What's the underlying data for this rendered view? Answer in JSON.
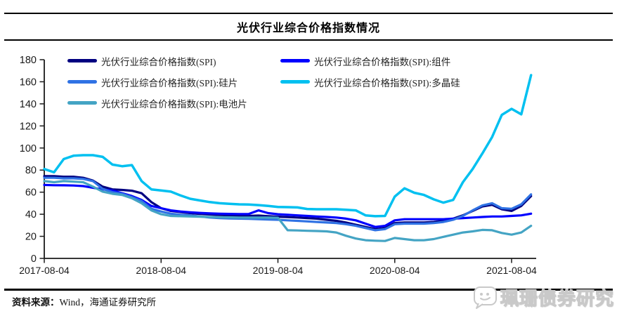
{
  "page": {
    "title": "光伏行业综合价格指数情况",
    "source_prefix": "资料来源：",
    "source_text": "Wind，海通证券研究所",
    "watermark": "珮珊债券研究"
  },
  "chart_data": {
    "type": "line",
    "title": "光伏行业综合价格指数情况",
    "xlabel": "",
    "ylabel": "",
    "ylim": [
      0,
      180
    ],
    "grid": false,
    "legend_position": "top",
    "x_unit": "months since 2017-08-04, one point per month through 2021-10",
    "y_ticks": [
      0,
      20,
      40,
      60,
      80,
      100,
      120,
      140,
      160,
      180
    ],
    "x_ticks": [
      {
        "label": "2017-08-04",
        "i": 0
      },
      {
        "label": "2018-08-04",
        "i": 12
      },
      {
        "label": "2019-08-04",
        "i": 24
      },
      {
        "label": "2020-08-04",
        "i": 36
      },
      {
        "label": "2021-08-04",
        "i": 48
      }
    ],
    "series": [
      {
        "key": "spi",
        "name": "光伏行业综合价格指数(SPI)",
        "color": "#010080",
        "width": 3.2,
        "values": [
          74.5,
          74.5,
          74,
          74,
          73,
          70.5,
          65,
          62.5,
          62,
          61.3,
          59,
          51,
          45.5,
          43,
          42,
          41,
          40.3,
          39.8,
          39.3,
          39,
          38.7,
          38.5,
          38.8,
          38.2,
          37.8,
          37.4,
          37,
          36.5,
          36,
          35,
          34,
          32.5,
          30.5,
          28.5,
          26.5,
          27.5,
          32,
          32.5,
          32.5,
          32.5,
          33,
          34,
          36,
          39,
          43,
          47,
          48.5,
          44.5,
          43,
          47.5,
          56.5
        ]
      },
      {
        "key": "module",
        "name": "光伏行业综合价格指数(SPI):组件",
        "color": "#0000FF",
        "width": 3.2,
        "values": [
          66.5,
          66.3,
          66.2,
          66,
          65.5,
          64,
          62.5,
          61.5,
          59,
          56.5,
          53,
          47.5,
          45.5,
          43.5,
          42.5,
          41.8,
          41.2,
          40.8,
          40.5,
          40.3,
          40.2,
          40.2,
          43.5,
          41,
          40,
          39.5,
          39,
          38.5,
          38,
          37.5,
          37,
          36,
          34.5,
          31.5,
          28.5,
          29.5,
          34.5,
          35.5,
          35.5,
          35.5,
          35.5,
          35.5,
          36,
          36.5,
          37,
          37.5,
          38,
          38,
          38.5,
          39,
          40.5
        ]
      },
      {
        "key": "wafer",
        "name": "光伏行业综合价格指数(SPI):硅片",
        "color": "#2F72E4",
        "width": 3.2,
        "values": [
          73,
          73,
          72.5,
          72.5,
          72,
          70,
          63,
          60,
          58.5,
          55.5,
          52,
          45,
          42.5,
          40.5,
          39.5,
          39,
          38,
          37,
          36.5,
          36.2,
          36,
          35.8,
          35.5,
          35.2,
          35,
          34.5,
          34,
          33.5,
          33,
          32.5,
          32,
          31,
          29.5,
          27.5,
          25.5,
          26.5,
          31,
          31.5,
          31.5,
          31.5,
          32,
          33,
          35,
          38.5,
          43.5,
          48,
          50,
          45.5,
          45,
          49,
          58
        ]
      },
      {
        "key": "polysilicon",
        "name": "光伏行业综合价格指数(SPI):多晶硅",
        "color": "#00C0F0",
        "width": 3.5,
        "values": [
          81,
          78,
          90,
          93,
          93.5,
          93.5,
          92,
          85,
          83.5,
          84.5,
          70,
          62.5,
          61.5,
          60.5,
          57,
          54,
          52.5,
          51,
          50,
          49.5,
          49,
          48.8,
          48.3,
          47.5,
          46.6,
          46.4,
          46.2,
          44.8,
          44.5,
          44.5,
          44.5,
          44,
          43.5,
          39,
          38.2,
          38.5,
          56,
          63.5,
          59.5,
          57.5,
          53.5,
          50.5,
          53,
          69,
          81,
          95,
          110,
          130,
          135.5,
          130.5,
          166
        ]
      },
      {
        "key": "cell",
        "name": "光伏行业综合价格指数(SPI):电池片",
        "color": "#44A4C4",
        "width": 3.2,
        "values": [
          70,
          69,
          70,
          69.5,
          69,
          65,
          60.5,
          58.5,
          57.5,
          54.5,
          50,
          43.5,
          40,
          38.5,
          38.2,
          38,
          37.8,
          37.5,
          37.3,
          37.2,
          37,
          37,
          37,
          37,
          36.8,
          25.5,
          25.3,
          25,
          24.8,
          24.5,
          23.5,
          20.5,
          18,
          16.5,
          16,
          15.8,
          18.5,
          17.5,
          16.5,
          16.5,
          17.5,
          19.5,
          21.5,
          23.5,
          24.5,
          25.8,
          25.5,
          23,
          21.5,
          23.5,
          29.5
        ]
      }
    ]
  }
}
